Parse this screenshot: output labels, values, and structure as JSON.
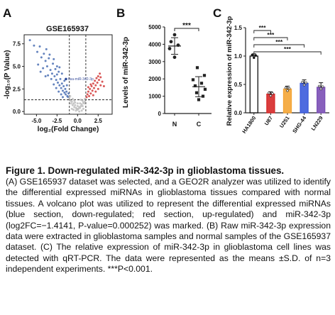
{
  "panels": {
    "A": {
      "letter": "A"
    },
    "B": {
      "letter": "B"
    },
    "C": {
      "letter": "C"
    }
  },
  "chart_data": [
    {
      "panel": "A",
      "type": "scatter",
      "title": "GSE165937",
      "xlabel": "log₂(Fold Change)",
      "ylabel": "-log₁₀(P Value)",
      "xlim": [
        -6.5,
        4.2
      ],
      "ylim": [
        -0.3,
        8.5
      ],
      "xticks": [
        "-5.0",
        "-2.5",
        "0.0",
        "2.5"
      ],
      "yticks": [
        "0.0",
        "2.5",
        "5.0",
        "7.5"
      ],
      "thresholds": {
        "log2fc": [
          -1,
          1
        ],
        "neg_log10_p": 1.3
      },
      "annotation": {
        "label": "hsa-miR-342-3p",
        "x": -1.4141,
        "y": 3.598
      },
      "colors": {
        "down": "#4a6fb3",
        "up": "#d23a3a",
        "ns": "#bdbdbd"
      },
      "series": [
        {
          "name": "down-regulated",
          "color": "#4a6fb3",
          "points": [
            [
              -5.8,
              7.9
            ],
            [
              -5.3,
              7.3
            ],
            [
              -4.9,
              6.6
            ],
            [
              -4.6,
              7.2
            ],
            [
              -4.4,
              6.0
            ],
            [
              -4.1,
              6.4
            ],
            [
              -3.9,
              5.6
            ],
            [
              -3.7,
              5.0
            ],
            [
              -3.5,
              5.9
            ],
            [
              -3.3,
              4.6
            ],
            [
              -3.1,
              4.2
            ],
            [
              -3.0,
              5.3
            ],
            [
              -2.8,
              3.9
            ],
            [
              -2.7,
              4.7
            ],
            [
              -2.6,
              3.5
            ],
            [
              -2.5,
              4.1
            ],
            [
              -2.4,
              3.2
            ],
            [
              -2.3,
              4.4
            ],
            [
              -2.2,
              2.9
            ],
            [
              -2.1,
              3.6
            ],
            [
              -2.0,
              2.6
            ],
            [
              -1.9,
              3.1
            ],
            [
              -1.8,
              2.3
            ],
            [
              -1.7,
              2.8
            ],
            [
              -1.6,
              2.1
            ],
            [
              -1.5,
              2.5
            ],
            [
              -1.45,
              1.9
            ],
            [
              -1.35,
              2.2
            ],
            [
              -1.25,
              1.7
            ],
            [
              -1.15,
              1.6
            ],
            [
              -1.1,
              2.0
            ],
            [
              -4.8,
              5.2
            ],
            [
              -4.2,
              4.8
            ],
            [
              -3.6,
              4.0
            ],
            [
              -3.2,
              3.6
            ],
            [
              -2.9,
              3.0
            ],
            [
              -2.6,
              2.6
            ],
            [
              -2.3,
              2.2
            ],
            [
              -2.0,
              1.9
            ],
            [
              -1.8,
              1.6
            ],
            [
              -3.8,
              6.9
            ],
            [
              -3.4,
              6.3
            ],
            [
              -2.9,
              5.8
            ],
            [
              -2.5,
              5.0
            ],
            [
              -2.2,
              4.9
            ],
            [
              -1.9,
              4.2
            ],
            [
              -1.6,
              3.4
            ],
            [
              -1.3,
              2.9
            ],
            [
              -4.5,
              4.4
            ],
            [
              -3.9,
              3.9
            ]
          ]
        },
        {
          "name": "up-regulated",
          "color": "#d23a3a",
          "points": [
            [
              1.1,
              1.6
            ],
            [
              1.2,
              1.9
            ],
            [
              1.3,
              2.2
            ],
            [
              1.4,
              1.7
            ],
            [
              1.5,
              2.5
            ],
            [
              1.6,
              2.0
            ],
            [
              1.7,
              2.8
            ],
            [
              1.8,
              2.3
            ],
            [
              1.9,
              3.1
            ],
            [
              2.0,
              2.6
            ],
            [
              2.1,
              3.4
            ],
            [
              2.2,
              2.9
            ],
            [
              2.3,
              3.7
            ],
            [
              2.4,
              3.2
            ],
            [
              2.5,
              3.9
            ],
            [
              2.6,
              3.5
            ],
            [
              2.7,
              4.2
            ],
            [
              2.8,
              3.8
            ],
            [
              3.0,
              3.3
            ],
            [
              3.2,
              2.8
            ],
            [
              1.3,
              2.7
            ],
            [
              1.6,
              3.0
            ],
            [
              1.9,
              1.8
            ],
            [
              2.2,
              2.2
            ],
            [
              2.5,
              2.5
            ],
            [
              2.8,
              2.9
            ]
          ]
        },
        {
          "name": "not significant",
          "color": "#bdbdbd",
          "points": [
            [
              -0.9,
              1.2
            ],
            [
              -0.8,
              0.9
            ],
            [
              -0.7,
              1.1
            ],
            [
              -0.6,
              0.7
            ],
            [
              -0.5,
              0.9
            ],
            [
              -0.4,
              0.5
            ],
            [
              -0.3,
              0.7
            ],
            [
              -0.2,
              0.4
            ],
            [
              -0.1,
              0.3
            ],
            [
              0.0,
              0.2
            ],
            [
              0.1,
              0.3
            ],
            [
              0.2,
              0.5
            ],
            [
              0.3,
              0.4
            ],
            [
              0.4,
              0.6
            ],
            [
              0.5,
              0.8
            ],
            [
              0.6,
              0.6
            ],
            [
              0.7,
              1.0
            ],
            [
              0.8,
              0.9
            ],
            [
              0.9,
              1.1
            ],
            [
              -1.0,
              1.5
            ],
            [
              -0.9,
              1.7
            ],
            [
              -0.6,
              1.4
            ],
            [
              -0.3,
              1.0
            ],
            [
              0.0,
              0.6
            ],
            [
              0.3,
              0.9
            ],
            [
              0.6,
              1.2
            ],
            [
              0.9,
              1.4
            ],
            [
              -0.5,
              0.2
            ],
            [
              0.5,
              0.1
            ],
            [
              -0.2,
              0.1
            ],
            [
              0.2,
              0.0
            ],
            [
              -0.7,
              0.3
            ],
            [
              0.7,
              0.3
            ],
            [
              0.0,
              0.9
            ],
            [
              -0.4,
              1.2
            ],
            [
              0.4,
              1.3
            ]
          ]
        }
      ]
    },
    {
      "panel": "B",
      "type": "scatter",
      "ylabel": "Levels of miR-342-3p",
      "ylim": [
        0,
        5000
      ],
      "yticks": [
        "0",
        "1000",
        "2000",
        "3000",
        "4000",
        "5000"
      ],
      "categories": [
        "N",
        "C"
      ],
      "significance": "***",
      "colors": {
        "points": "#222222"
      },
      "series": [
        {
          "name": "N",
          "values": [
            4550,
            4150,
            3950,
            3750,
            3250
          ]
        },
        {
          "name": "C",
          "values": [
            2650,
            2200,
            1950,
            1750,
            1600,
            1400,
            1200,
            1000,
            800
          ]
        }
      ],
      "mean_sd": [
        {
          "mean": 3900,
          "sd": 480
        },
        {
          "mean": 1550,
          "sd": 580
        }
      ]
    },
    {
      "panel": "C",
      "type": "bar",
      "ylabel": "Relative expression of miR-342-3p",
      "ylim": [
        0,
        1.5
      ],
      "yticks": [
        "0.0",
        "0.5",
        "1.0",
        "1.5"
      ],
      "categories": [
        "HA1800",
        "U87",
        "U251",
        "SHG-44",
        "LN229"
      ],
      "values": [
        1.0,
        0.33,
        0.42,
        0.52,
        0.45
      ],
      "errors": [
        0.04,
        0.04,
        0.05,
        0.06,
        0.08
      ],
      "colors": [
        "#111111",
        "#d62828",
        "#f4a535",
        "#3b5bdb",
        "#7b4fb5"
      ],
      "significance": [
        "***",
        "***",
        "***",
        "***"
      ]
    }
  ],
  "caption": {
    "title": "Figure 1. Down-regulated miR-342-3p in glioblastoma tissues.",
    "body": "(A) GSE165937 dataset was selected, and a GEO2R analyzer was utilized to identify the differential expressed miRNAs in glioblastoma tissues compared with normal tissues. A volcano plot was utilized to represent the differential expressed miRNAs (blue section, down-regulated; red section, up-regulated) and miR-342-3p (log2FC=−1.4141, P-value=0.000252) was marked. (B) Raw miR-342-3p expression data were extracted in glioblastoma samples and normal samples of the GSE165937 dataset. (C) The relative expression of miR-342-3p in glioblastoma cell lines was detected with qRT-PCR. The data were represented as the means ±S.D. of n=3 independent experiments. ***P<0.001."
  }
}
